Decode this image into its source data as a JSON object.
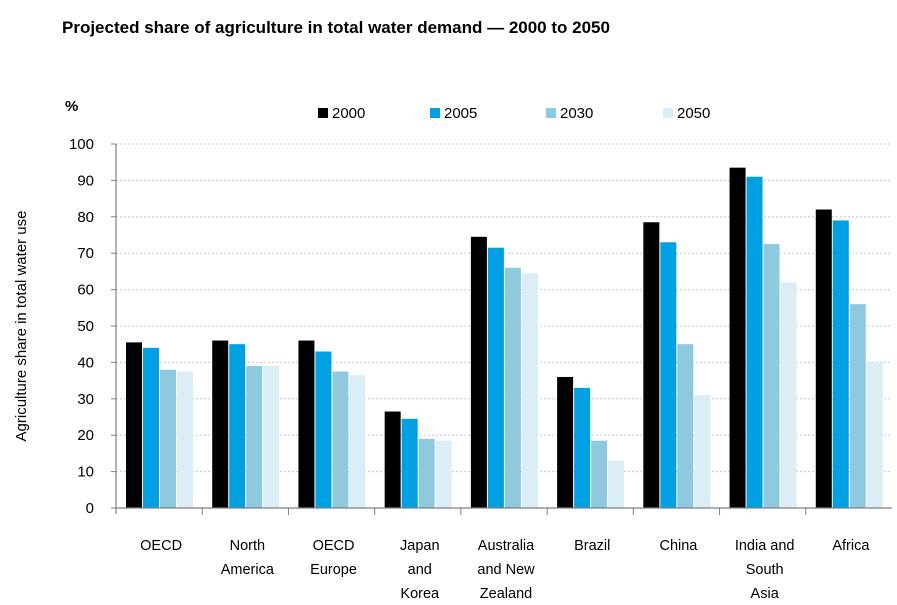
{
  "chart_data": {
    "type": "bar",
    "title": "Projected share of agriculture in total water demand — 2000 to 2050",
    "unit": "%",
    "ylabel": "Agriculture share in total water use",
    "xlabel": "",
    "ylim": [
      0,
      100
    ],
    "yticks": [
      0,
      10,
      20,
      30,
      40,
      50,
      60,
      70,
      80,
      90,
      100
    ],
    "grid": true,
    "legend_position": "top",
    "categories": [
      [
        "OECD"
      ],
      [
        "North",
        "America"
      ],
      [
        "OECD",
        "Europe"
      ],
      [
        "Japan",
        "and",
        "Korea"
      ],
      [
        "Australia",
        "and New",
        "Zealand"
      ],
      [
        "Brazil"
      ],
      [
        "China"
      ],
      [
        "India and",
        "South",
        "Asia"
      ],
      [
        "Africa"
      ]
    ],
    "series": [
      {
        "name": "2000",
        "color": "#000000",
        "values": [
          45.5,
          46,
          46,
          26.5,
          74.5,
          36,
          78.5,
          93.5,
          82
        ]
      },
      {
        "name": "2005",
        "color": "#00a0e3",
        "values": [
          44,
          45,
          43,
          24.5,
          71.5,
          33,
          73,
          91,
          79
        ]
      },
      {
        "name": "2030",
        "color": "#8ec9dd",
        "values": [
          38,
          39,
          37.5,
          19,
          66,
          18.5,
          45,
          72.5,
          56
        ]
      },
      {
        "name": "2050",
        "color": "#dbedf5",
        "values": [
          37.5,
          39,
          36.5,
          18.5,
          64.5,
          13,
          31,
          62,
          40
        ]
      }
    ]
  }
}
